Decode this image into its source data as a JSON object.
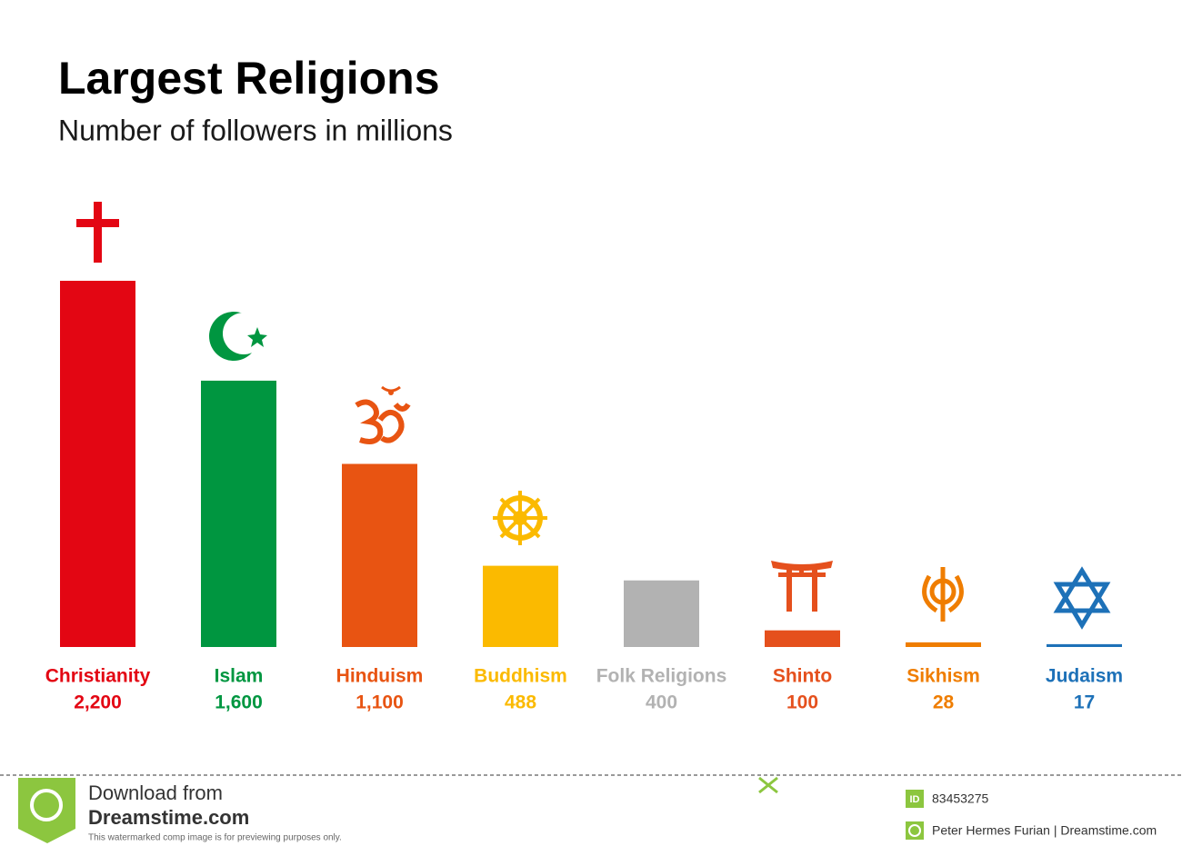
{
  "chart_data": {
    "type": "bar",
    "title": "Largest Religions",
    "subtitle": "Number of followers in millions",
    "categories": [
      "Christianity",
      "Islam",
      "Hinduism",
      "Buddhism",
      "Folk Religions",
      "Shinto",
      "Sikhism",
      "Judaism"
    ],
    "values": [
      2200,
      1600,
      1100,
      488,
      400,
      100,
      28,
      17
    ],
    "value_labels": [
      "2,200",
      "1,600",
      "1,100",
      "488",
      "400",
      "100",
      "28",
      "17"
    ],
    "colors": [
      "#e30613",
      "#009640",
      "#e85412",
      "#fbba00",
      "#b2b2b2",
      "#e5501d",
      "#ef7d00",
      "#1d71b8"
    ],
    "ylim": [
      0,
      2200
    ]
  },
  "watermark": {
    "download": "Download from",
    "site": "Dreamstime.com",
    "notice": "This watermarked comp image is for previewing purposes only.",
    "id_badge": "ID",
    "id": "83453275",
    "credit": "Peter Hermes Furian | Dreamstime.com"
  }
}
